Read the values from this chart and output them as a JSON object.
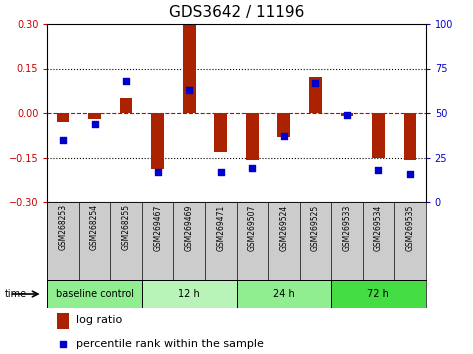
{
  "title": "GDS3642 / 11196",
  "samples": [
    "GSM268253",
    "GSM268254",
    "GSM268255",
    "GSM269467",
    "GSM269469",
    "GSM269471",
    "GSM269507",
    "GSM269524",
    "GSM269525",
    "GSM269533",
    "GSM269534",
    "GSM269535"
  ],
  "log_ratio": [
    -0.03,
    -0.02,
    0.05,
    -0.19,
    0.305,
    -0.13,
    -0.16,
    -0.08,
    0.12,
    -0.01,
    -0.15,
    -0.16
  ],
  "percentile_rank": [
    35,
    44,
    68,
    17,
    63,
    17,
    19,
    37,
    67,
    49,
    18,
    16
  ],
  "groups": [
    {
      "label": "baseline control",
      "start": 0,
      "end": 3,
      "color": "#90ee90"
    },
    {
      "label": "12 h",
      "start": 3,
      "end": 6,
      "color": "#b8f4b8"
    },
    {
      "label": "24 h",
      "start": 6,
      "end": 9,
      "color": "#90ee90"
    },
    {
      "label": "72 h",
      "start": 9,
      "end": 12,
      "color": "#44dd44"
    }
  ],
  "ylim_left": [
    -0.3,
    0.3
  ],
  "ylim_right": [
    0,
    100
  ],
  "yticks_left": [
    -0.3,
    -0.15,
    0.0,
    0.15,
    0.3
  ],
  "yticks_right": [
    0,
    25,
    50,
    75,
    100
  ],
  "bar_color": "#aa2200",
  "dot_color": "#0000cc",
  "hline_color": "#cc0000",
  "dot_line_color": "#000000",
  "sample_bg": "#cccccc",
  "bg_color": "#ffffff",
  "title_fontsize": 11,
  "tick_fontsize": 7,
  "sample_fontsize": 5.5,
  "group_fontsize": 7,
  "legend_fontsize": 8,
  "bar_width": 0.4
}
